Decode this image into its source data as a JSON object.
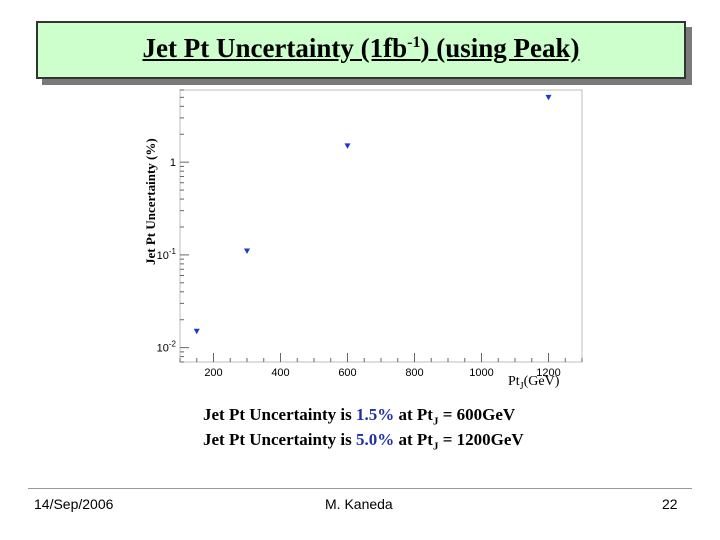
{
  "slide": {
    "title_pre": "Jet Pt Uncertainty (1fb",
    "title_sup": "-1",
    "title_post": ") (using Peak)",
    "footer_date": "14/Sep/2006",
    "footer_author": "M. Kaneda",
    "footer_page": "22"
  },
  "chart_data": {
    "type": "scatter",
    "ylabel": "Jet Pt Uncertainty (%)",
    "xlabel_main": "Pt",
    "xlabel_sub": "J",
    "xlabel_unit": "(GeV)",
    "xlim": [
      100,
      1300
    ],
    "ylim": [
      0.007,
      6
    ],
    "yscale": "log",
    "xticks": [
      200,
      400,
      600,
      800,
      1000,
      1200
    ],
    "ytick_labels": [
      {
        "value": 1,
        "base": "1",
        "exp": ""
      },
      {
        "value": 0.1,
        "base": "10",
        "exp": "-1"
      },
      {
        "value": 0.01,
        "base": "10",
        "exp": "-2"
      }
    ],
    "marker_color": "#1a3acc",
    "grid": false,
    "points": [
      {
        "x": 150,
        "y": 0.015
      },
      {
        "x": 300,
        "y": 0.11
      },
      {
        "x": 600,
        "y": 1.5
      },
      {
        "x": 1200,
        "y": 5.0
      }
    ]
  },
  "notes": [
    {
      "pre": "Jet Pt Uncertainty is ",
      "value": "1.5%",
      "mid": " at Pt",
      "sub": "J",
      "post": " = 600GeV"
    },
    {
      "pre": "Jet Pt Uncertainty is ",
      "value": "5.0%",
      "mid": " at Pt",
      "sub": "J",
      "post": " = 1200GeV"
    }
  ]
}
